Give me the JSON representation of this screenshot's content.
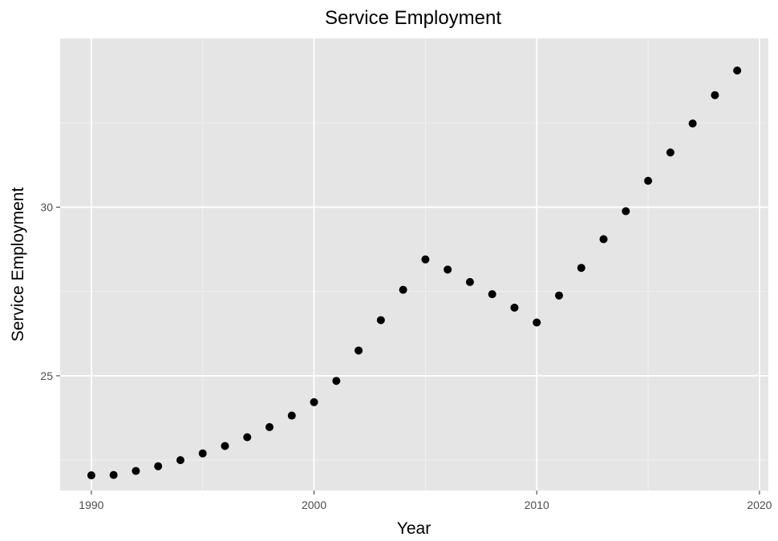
{
  "chart_data": {
    "type": "scatter",
    "title": "Service Employment",
    "xlabel": "Year",
    "ylabel": "Service Employment",
    "xlim": [
      1988.6,
      2020.4
    ],
    "ylim": [
      21.6,
      35.0
    ],
    "x_ticks": [
      1990,
      2000,
      2010,
      2020
    ],
    "y_ticks": [
      25,
      30
    ],
    "grid": true,
    "x": [
      1990,
      1991,
      1992,
      1993,
      1994,
      1995,
      1996,
      1997,
      1998,
      1999,
      2000,
      2001,
      2002,
      2003,
      2004,
      2005,
      2006,
      2007,
      2008,
      2009,
      2010,
      2011,
      2012,
      2013,
      2014,
      2015,
      2016,
      2017,
      2018,
      2019
    ],
    "y": [
      22.05,
      22.06,
      22.18,
      22.32,
      22.5,
      22.7,
      22.92,
      23.18,
      23.48,
      23.82,
      24.22,
      24.85,
      25.75,
      26.65,
      27.55,
      28.45,
      28.15,
      27.78,
      27.42,
      27.02,
      26.58,
      27.38,
      28.2,
      29.05,
      29.88,
      30.78,
      31.62,
      32.48,
      33.32,
      34.05
    ]
  }
}
